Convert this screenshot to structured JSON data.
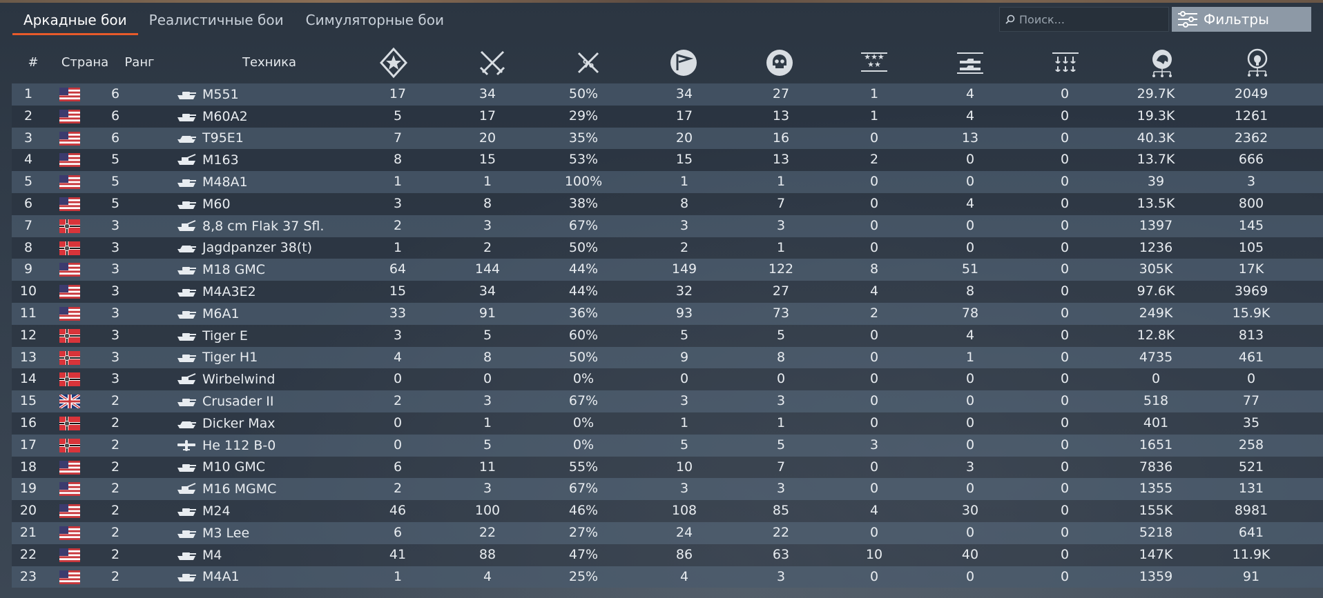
{
  "tabs": [
    {
      "label": "Аркадные бои",
      "active": true
    },
    {
      "label": "Реалистичные бои",
      "active": false
    },
    {
      "label": "Симуляторные бои",
      "active": false
    }
  ],
  "search": {
    "placeholder": "Поиск..."
  },
  "filters_label": "Фильтры",
  "columns": {
    "num": "#",
    "country": "Страна",
    "rank": "Ранг",
    "vehicle": "Техника",
    "icons": [
      "battles-icon",
      "victories-icon",
      "winrate-icon",
      "respawns-icon",
      "deaths-icon",
      "air-kills-icon",
      "ground-kills-icon",
      "naval-kills-icon",
      "silver-lions-icon",
      "research-points-icon"
    ]
  },
  "colors": {
    "accent": "#e85a2a",
    "row_light": "#4a5a6c",
    "row_dark": "#28323e",
    "usa_red": "#c8363b",
    "usa_blue": "#3c3b6e",
    "germany_red": "#d9343a"
  },
  "rows": [
    {
      "n": "1",
      "flag": "usa",
      "rank": "6",
      "type": "tank",
      "name": "M551",
      "v": [
        "17",
        "34",
        "50%",
        "34",
        "27",
        "1",
        "4",
        "0",
        "29.7K",
        "2049"
      ]
    },
    {
      "n": "2",
      "flag": "usa",
      "rank": "6",
      "type": "tank",
      "name": "M60A2",
      "v": [
        "5",
        "17",
        "29%",
        "17",
        "13",
        "1",
        "4",
        "0",
        "19.3K",
        "1261"
      ]
    },
    {
      "n": "3",
      "flag": "usa",
      "rank": "6",
      "type": "td",
      "name": "T95E1",
      "v": [
        "7",
        "20",
        "35%",
        "20",
        "16",
        "0",
        "13",
        "0",
        "40.3K",
        "2362"
      ]
    },
    {
      "n": "4",
      "flag": "usa",
      "rank": "5",
      "type": "spaa",
      "name": "M163",
      "v": [
        "8",
        "15",
        "53%",
        "15",
        "13",
        "2",
        "0",
        "0",
        "13.7K",
        "666"
      ]
    },
    {
      "n": "5",
      "flag": "usa",
      "rank": "5",
      "type": "tank",
      "name": "M48A1",
      "v": [
        "1",
        "1",
        "100%",
        "1",
        "1",
        "0",
        "0",
        "0",
        "39",
        "3"
      ]
    },
    {
      "n": "6",
      "flag": "usa",
      "rank": "5",
      "type": "tank",
      "name": "M60",
      "v": [
        "3",
        "8",
        "38%",
        "8",
        "7",
        "0",
        "4",
        "0",
        "13.5K",
        "800"
      ]
    },
    {
      "n": "7",
      "flag": "germany",
      "rank": "3",
      "type": "spaa",
      "name": "8,8 cm Flak 37 Sfl.",
      "v": [
        "2",
        "3",
        "67%",
        "3",
        "3",
        "0",
        "0",
        "0",
        "1397",
        "145"
      ]
    },
    {
      "n": "8",
      "flag": "germany",
      "rank": "3",
      "type": "td",
      "name": "Jagdpanzer 38(t)",
      "v": [
        "1",
        "2",
        "50%",
        "2",
        "1",
        "0",
        "0",
        "0",
        "1236",
        "105"
      ]
    },
    {
      "n": "9",
      "flag": "usa",
      "rank": "3",
      "type": "tank",
      "name": "M18 GMC",
      "v": [
        "64",
        "144",
        "44%",
        "149",
        "122",
        "8",
        "51",
        "0",
        "305K",
        "17K"
      ]
    },
    {
      "n": "10",
      "flag": "usa",
      "rank": "3",
      "type": "tank",
      "name": "M4A3E2",
      "v": [
        "15",
        "34",
        "44%",
        "32",
        "27",
        "4",
        "8",
        "0",
        "97.6K",
        "3969"
      ]
    },
    {
      "n": "11",
      "flag": "usa",
      "rank": "3",
      "type": "tank",
      "name": "M6A1",
      "v": [
        "33",
        "91",
        "36%",
        "93",
        "73",
        "2",
        "78",
        "0",
        "249K",
        "15.9K"
      ]
    },
    {
      "n": "12",
      "flag": "germany",
      "rank": "3",
      "type": "tank",
      "name": "Tiger E",
      "v": [
        "3",
        "5",
        "60%",
        "5",
        "5",
        "0",
        "4",
        "0",
        "12.8K",
        "813"
      ]
    },
    {
      "n": "13",
      "flag": "germany",
      "rank": "3",
      "type": "tank",
      "name": "Tiger H1",
      "v": [
        "4",
        "8",
        "50%",
        "9",
        "8",
        "0",
        "1",
        "0",
        "4735",
        "461"
      ]
    },
    {
      "n": "14",
      "flag": "germany",
      "rank": "3",
      "type": "spaa",
      "name": "Wirbelwind",
      "v": [
        "0",
        "0",
        "0%",
        "0",
        "0",
        "0",
        "0",
        "0",
        "0",
        "0"
      ]
    },
    {
      "n": "15",
      "flag": "uk",
      "rank": "2",
      "type": "tank",
      "name": "Crusader II",
      "v": [
        "2",
        "3",
        "67%",
        "3",
        "3",
        "0",
        "0",
        "0",
        "518",
        "77"
      ]
    },
    {
      "n": "16",
      "flag": "germany",
      "rank": "2",
      "type": "td",
      "name": "Dicker Max",
      "v": [
        "0",
        "1",
        "0%",
        "1",
        "1",
        "0",
        "0",
        "0",
        "401",
        "35"
      ]
    },
    {
      "n": "17",
      "flag": "germany",
      "rank": "2",
      "type": "plane",
      "name": "He 112 B-0",
      "v": [
        "0",
        "5",
        "0%",
        "5",
        "5",
        "3",
        "0",
        "0",
        "1651",
        "258"
      ]
    },
    {
      "n": "18",
      "flag": "usa",
      "rank": "2",
      "type": "tank",
      "name": "M10 GMC",
      "v": [
        "6",
        "11",
        "55%",
        "10",
        "7",
        "0",
        "3",
        "0",
        "7836",
        "521"
      ]
    },
    {
      "n": "19",
      "flag": "usa",
      "rank": "2",
      "type": "spaa",
      "name": "M16 MGMC",
      "v": [
        "2",
        "3",
        "67%",
        "3",
        "3",
        "0",
        "0",
        "0",
        "1355",
        "131"
      ]
    },
    {
      "n": "20",
      "flag": "usa",
      "rank": "2",
      "type": "tank",
      "name": "M24",
      "v": [
        "46",
        "100",
        "46%",
        "108",
        "85",
        "4",
        "30",
        "0",
        "155K",
        "8981"
      ]
    },
    {
      "n": "21",
      "flag": "usa",
      "rank": "2",
      "type": "tank",
      "name": "M3 Lee",
      "v": [
        "6",
        "22",
        "27%",
        "24",
        "22",
        "0",
        "0",
        "0",
        "5218",
        "641"
      ]
    },
    {
      "n": "22",
      "flag": "usa",
      "rank": "2",
      "type": "tank",
      "name": "M4",
      "v": [
        "41",
        "88",
        "47%",
        "86",
        "63",
        "10",
        "40",
        "0",
        "147K",
        "11.9K"
      ]
    },
    {
      "n": "23",
      "flag": "usa",
      "rank": "2",
      "type": "tank",
      "name": "M4A1",
      "v": [
        "1",
        "4",
        "25%",
        "4",
        "3",
        "0",
        "0",
        "0",
        "1359",
        "91"
      ]
    }
  ]
}
